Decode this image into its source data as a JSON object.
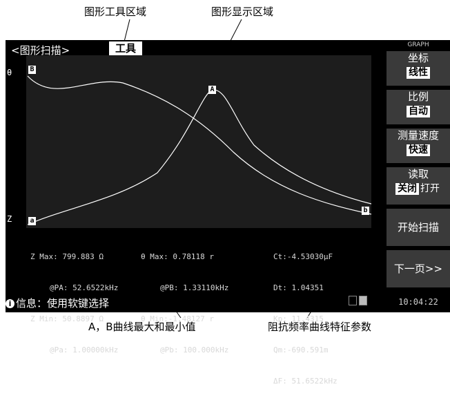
{
  "annotations": {
    "tool_area": "图形工具区域",
    "display_area": "图形显示区域",
    "ab_curves": "A，B曲线最大和最小值",
    "impedance_params": "阻抗频率曲线特征参数"
  },
  "screen": {
    "title": "<图形扫描>",
    "tool_label": "工具",
    "axis_top": "θ",
    "axis_bottom": "Z",
    "marker_a": "A",
    "marker_b": "B",
    "marker_b_end": "b",
    "marker_a_bottom": "a",
    "status": "信息：使用软键选择",
    "info_icon": "info-icon",
    "time": "10:04:22"
  },
  "stats": {
    "col1": {
      "z_max": "Z Max: 799.883 Ω",
      "pa_max": "@PA: 52.6522kHz",
      "z_min": "Z Min: 50.8897 Ω",
      "pa_min": "@Pa: 1.00000kHz"
    },
    "col2": {
      "t_max": "θ Max: 0.78118 r",
      "pb_max": "@PB: 1.33110kHz",
      "t_min": "θ Min:-1.48127 r",
      "pb_min": "@Pb: 100.000kHz"
    },
    "col3": {
      "ct": "Ct:-4.53030μF",
      "dt": "Dt: 1.04351",
      "kp": "Kp: 11.4315",
      "qm": "Qm:-690.591m",
      "df": "ΔF: 51.6522kHz"
    }
  },
  "softkeys": {
    "header": "GRAPH",
    "coord_label": "坐标",
    "coord_value": "线性",
    "scale_label": "比例",
    "scale_value": "自动",
    "speed_label": "测量速度",
    "speed_value": "快速",
    "read_label": "读取",
    "read_off": "关闭",
    "read_on": "打开",
    "start_scan": "开始扫描",
    "next_page": "下一页>>"
  },
  "chart_data": {
    "type": "line",
    "series": [],
    "notes": "impedance-frequency sweep: curve A peaks mid-range, curve B decreases"
  }
}
